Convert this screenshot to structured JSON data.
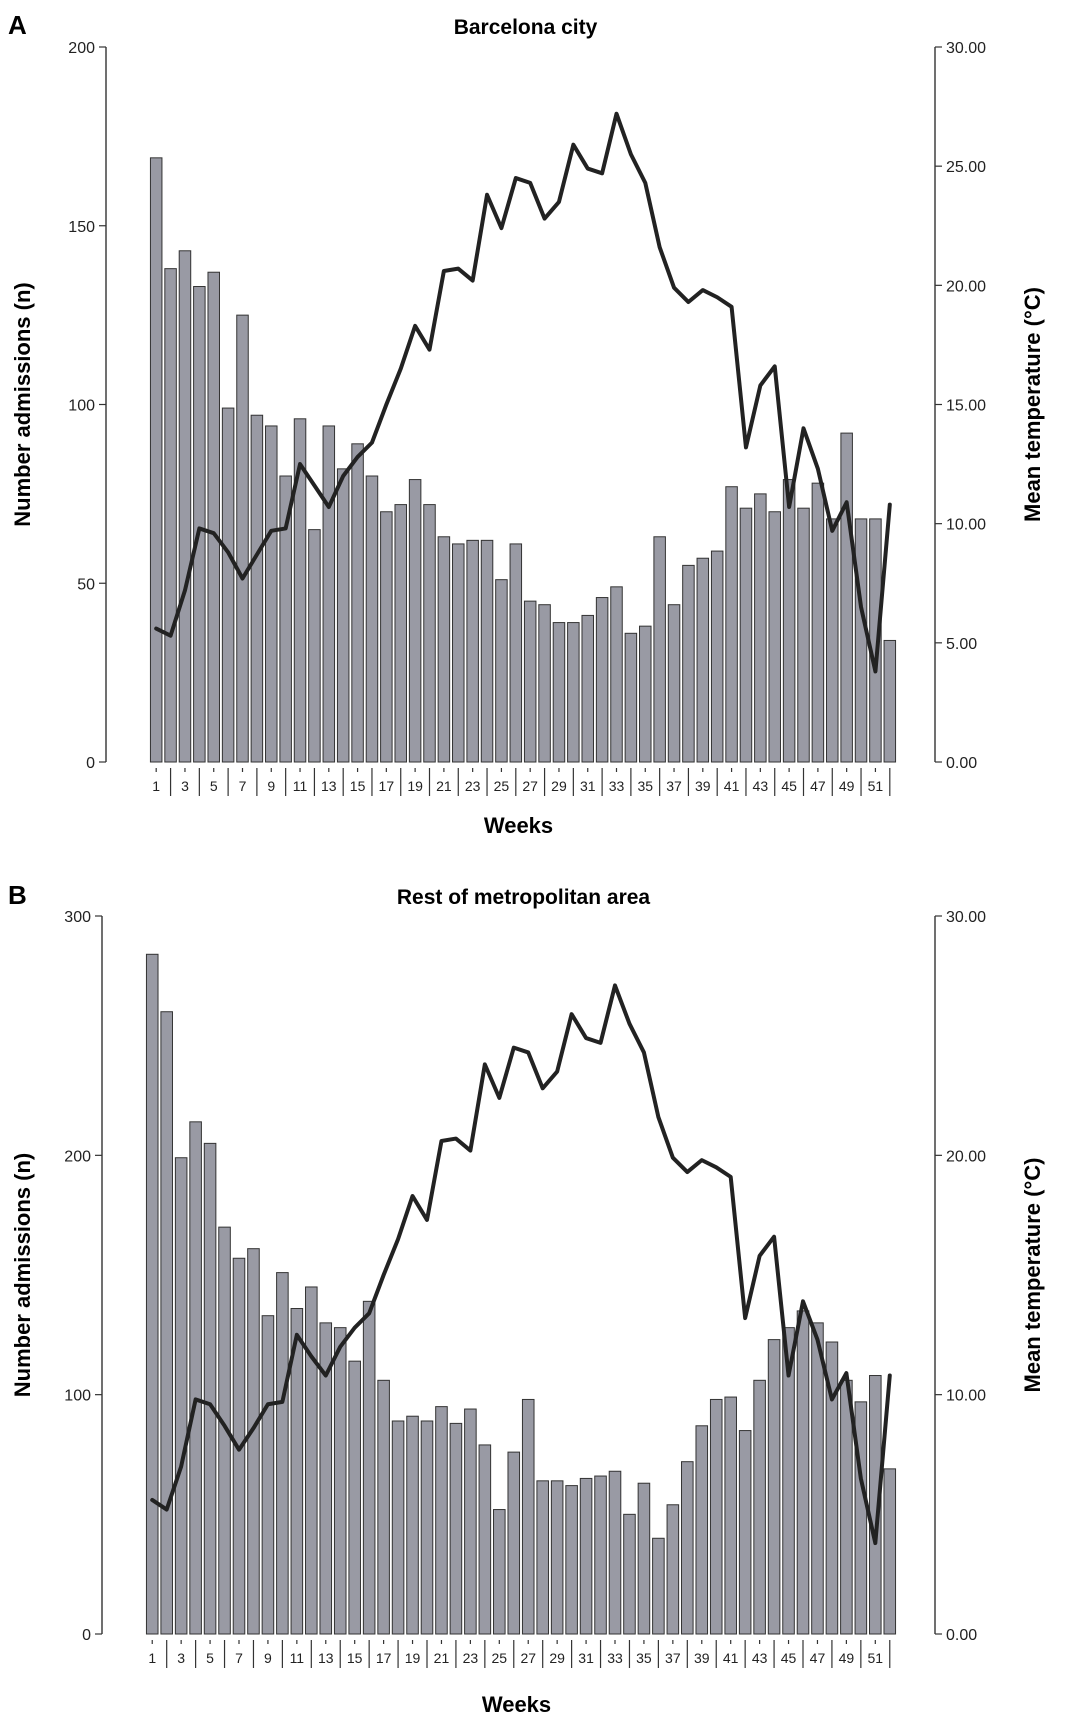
{
  "chart_data": [
    {
      "type": "bar",
      "panel_label": "A",
      "title": "Barcelona city",
      "xlabel": "Weeks",
      "ylabel": "Number admissions (n)",
      "y2label": "Mean temperature (°C)",
      "ylim": [
        0,
        200
      ],
      "yticks": [
        0,
        50,
        100,
        150,
        200
      ],
      "y2lim": [
        0,
        30
      ],
      "y2ticks": [
        "0.00",
        "5.00",
        "10.00",
        "15.00",
        "20.00",
        "25.00",
        "30.00"
      ],
      "xticks": [
        "1",
        "3",
        "5",
        "7",
        "9",
        "11",
        "13",
        "15",
        "17",
        "19",
        "21",
        "23",
        "25",
        "27",
        "29",
        "31",
        "33",
        "35",
        "37",
        "39",
        "41",
        "43",
        "45",
        "47",
        "49",
        "51"
      ],
      "grid": false,
      "x": [
        1,
        2,
        3,
        4,
        5,
        6,
        7,
        8,
        9,
        10,
        11,
        12,
        13,
        14,
        15,
        16,
        17,
        18,
        19,
        20,
        21,
        22,
        23,
        24,
        25,
        26,
        27,
        28,
        29,
        30,
        31,
        32,
        33,
        34,
        35,
        36,
        37,
        38,
        39,
        40,
        41,
        42,
        43,
        44,
        45,
        46,
        47,
        48,
        49,
        50,
        51,
        52
      ],
      "series": [
        {
          "type": "bar",
          "axis": "left",
          "values": [
            169,
            138,
            143,
            133,
            137,
            99,
            125,
            97,
            94,
            80,
            96,
            65,
            94,
            82,
            89,
            80,
            70,
            72,
            79,
            72,
            63,
            61,
            62,
            62,
            51,
            61,
            45,
            44,
            39,
            39,
            41,
            46,
            49,
            36,
            38,
            63,
            44,
            55,
            57,
            59,
            77,
            71,
            75,
            70,
            79,
            71,
            78,
            68,
            92,
            68,
            68,
            34
          ]
        },
        {
          "type": "line",
          "axis": "right",
          "values": [
            5.6,
            5.3,
            7.2,
            9.8,
            9.6,
            8.8,
            7.7,
            8.7,
            9.7,
            9.8,
            12.5,
            11.6,
            10.7,
            12.0,
            12.8,
            13.4,
            15.0,
            16.5,
            18.3,
            17.3,
            20.6,
            20.7,
            20.2,
            23.8,
            22.4,
            24.5,
            24.3,
            22.8,
            23.5,
            25.9,
            24.9,
            24.7,
            27.2,
            25.5,
            24.3,
            21.6,
            19.9,
            19.3,
            19.8,
            19.5,
            19.1,
            13.2,
            15.8,
            16.6,
            10.7,
            14.0,
            12.3,
            9.7,
            10.9,
            6.5,
            3.8,
            10.8
          ]
        }
      ]
    },
    {
      "type": "bar",
      "panel_label": "B",
      "title": "Rest of metropolitan area",
      "xlabel": "Weeks",
      "ylabel": "Number admissions (n)",
      "y2label": "Mean temperature (°C)",
      "ylim": [
        0,
        300
      ],
      "yticks": [
        0,
        100,
        200,
        300
      ],
      "y2lim": [
        0,
        30
      ],
      "y2ticks": [
        "0.00",
        "10.00",
        "20.00",
        "30.00"
      ],
      "xticks": [
        "1",
        "3",
        "5",
        "7",
        "9",
        "11",
        "13",
        "15",
        "17",
        "19",
        "21",
        "23",
        "25",
        "27",
        "29",
        "31",
        "33",
        "35",
        "37",
        "39",
        "41",
        "43",
        "45",
        "47",
        "49",
        "51"
      ],
      "grid": false,
      "x": [
        1,
        2,
        3,
        4,
        5,
        6,
        7,
        8,
        9,
        10,
        11,
        12,
        13,
        14,
        15,
        16,
        17,
        18,
        19,
        20,
        21,
        22,
        23,
        24,
        25,
        26,
        27,
        28,
        29,
        30,
        31,
        32,
        33,
        34,
        35,
        36,
        37,
        38,
        39,
        40,
        41,
        42,
        43,
        44,
        45,
        46,
        47,
        48,
        49,
        50,
        51,
        52
      ],
      "series": [
        {
          "type": "bar",
          "axis": "left",
          "values": [
            284,
            260,
            199,
            214,
            205,
            170,
            157,
            161,
            133,
            151,
            136,
            145,
            130,
            128,
            114,
            139,
            106,
            89,
            91,
            89,
            95,
            88,
            94,
            79,
            52,
            76,
            98,
            64,
            64,
            62,
            65,
            66,
            68,
            50,
            63,
            40,
            54,
            72,
            87,
            98,
            99,
            85,
            106,
            123,
            128,
            135,
            130,
            122,
            106,
            97,
            108,
            69
          ]
        },
        {
          "type": "line",
          "axis": "right",
          "values": [
            5.6,
            5.2,
            7.0,
            9.8,
            9.6,
            8.7,
            7.7,
            8.6,
            9.6,
            9.7,
            12.5,
            11.6,
            10.8,
            12.0,
            12.8,
            13.4,
            15.0,
            16.5,
            18.3,
            17.3,
            20.6,
            20.7,
            20.2,
            23.8,
            22.4,
            24.5,
            24.3,
            22.8,
            23.5,
            25.9,
            24.9,
            24.7,
            27.1,
            25.5,
            24.3,
            21.6,
            19.9,
            19.3,
            19.8,
            19.5,
            19.1,
            13.2,
            15.8,
            16.6,
            10.8,
            13.9,
            12.3,
            9.8,
            10.9,
            6.5,
            3.8,
            10.8
          ]
        }
      ]
    }
  ]
}
